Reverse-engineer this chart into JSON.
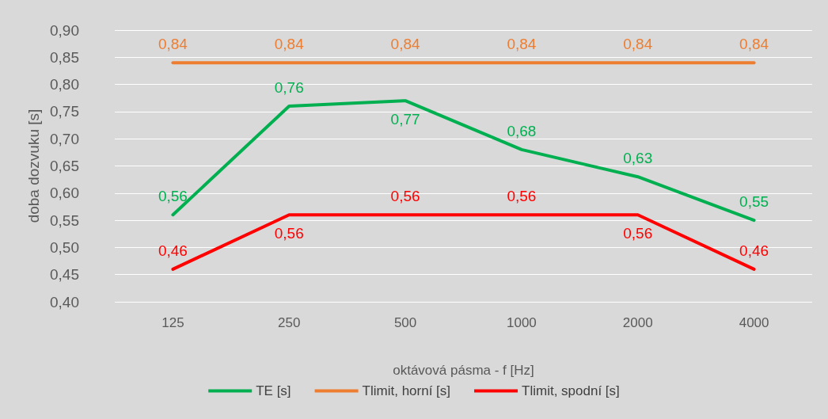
{
  "chart_data": {
    "type": "line",
    "xlabel": "oktávová pásma - f [Hz]",
    "ylabel": "doba dozvuku [s]",
    "categories": [
      "125",
      "250",
      "500",
      "1000",
      "2000",
      "4000"
    ],
    "series": [
      {
        "name": "TE [s]",
        "color": "#00b050",
        "values": [
          0.56,
          0.76,
          0.77,
          0.68,
          0.63,
          0.55
        ],
        "value_labels": [
          "0,56",
          "0,76",
          "0,77",
          "0,68",
          "0,63",
          "0,55"
        ]
      },
      {
        "name": "Tlimit, horní [s]",
        "color": "#ed7d31",
        "values": [
          0.84,
          0.84,
          0.84,
          0.84,
          0.84,
          0.84
        ],
        "value_labels": [
          "0,84",
          "0,84",
          "0,84",
          "0,84",
          "0,84",
          "0,84"
        ]
      },
      {
        "name": "Tlimit, spodní [s]",
        "color": "#ff0000",
        "values": [
          0.46,
          0.56,
          0.56,
          0.56,
          0.56,
          0.46
        ],
        "value_labels": [
          "0,46",
          "0,56",
          "0,56",
          "0,56",
          "0,56",
          "0,46"
        ]
      }
    ],
    "ylim": [
      0.4,
      0.9
    ],
    "yticks": [
      {
        "value": 0.4,
        "label": "0,40"
      },
      {
        "value": 0.45,
        "label": "0,45"
      },
      {
        "value": 0.5,
        "label": "0,50"
      },
      {
        "value": 0.55,
        "label": "0,55"
      },
      {
        "value": 0.6,
        "label": "0,60"
      },
      {
        "value": 0.65,
        "label": "0,65"
      },
      {
        "value": 0.7,
        "label": "0,70"
      },
      {
        "value": 0.75,
        "label": "0,75"
      },
      {
        "value": 0.8,
        "label": "0,80"
      },
      {
        "value": 0.85,
        "label": "0,85"
      },
      {
        "value": 0.9,
        "label": "0,90"
      }
    ],
    "grid": "y",
    "legend": "bottom",
    "marker": "none",
    "line_style": "solid"
  }
}
